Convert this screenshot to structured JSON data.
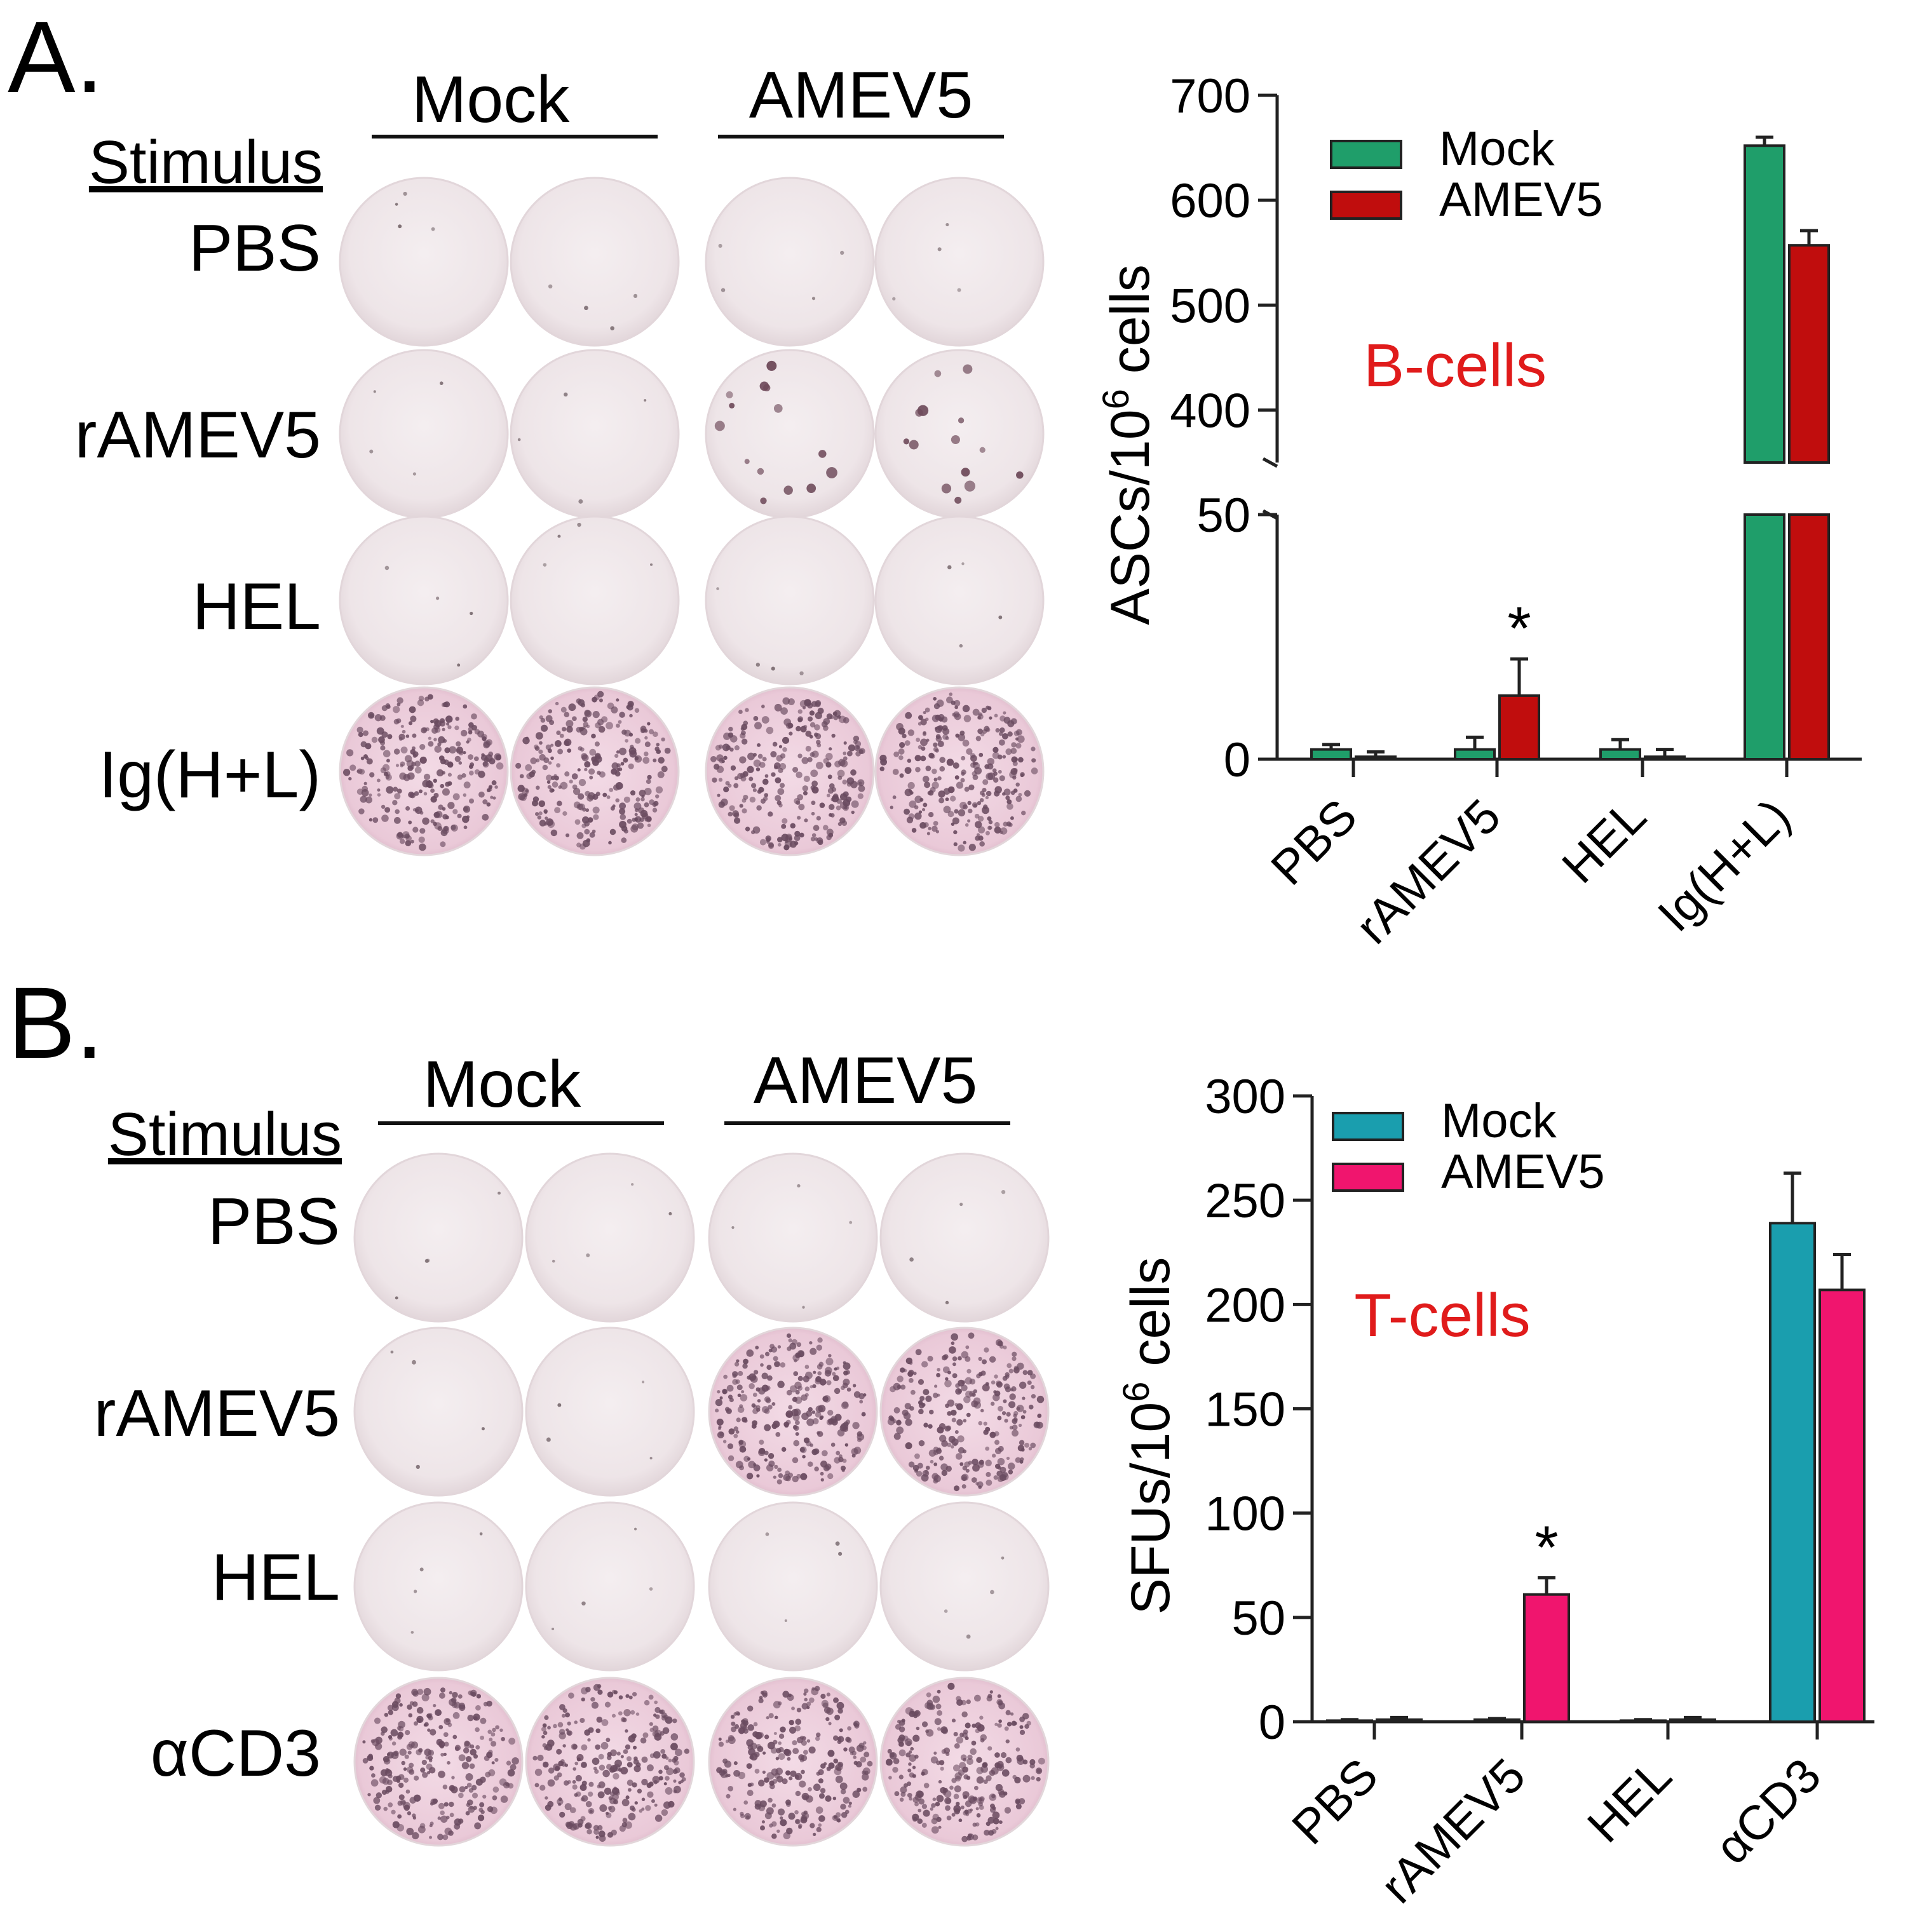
{
  "panels": [
    {
      "letter": "A.",
      "groups": [
        "Mock",
        "AMEV5"
      ],
      "stimulus_header": "Stimulus",
      "stimuli": [
        "PBS",
        "rAMEV5",
        "HEL",
        "Ig(H+L)"
      ]
    },
    {
      "letter": "B.",
      "groups": [
        "Mock",
        "AMEV5"
      ],
      "stimulus_header": "Stimulus",
      "stimuli": [
        "PBS",
        "rAMEV5",
        "HEL",
        "αCD3"
      ]
    }
  ],
  "chart_data": [
    {
      "type": "bar",
      "annotation": "B-cells",
      "annotation_color": "#e01b1b",
      "ylabel": "ASCs/10^6 cells",
      "axis_break": true,
      "lower_ylim": [
        0,
        50
      ],
      "lower_yticks": [
        0,
        50
      ],
      "upper_ylim": [
        350,
        700
      ],
      "upper_yticks": [
        400,
        500,
        600,
        700
      ],
      "categories": [
        "PBS",
        "rAMEV5",
        "HEL",
        "Ig(H+L)"
      ],
      "legend_position": "top-left",
      "series": [
        {
          "name": "Mock",
          "color": "#1f9e6a",
          "values": [
            2,
            2,
            2,
            652
          ],
          "errors": [
            1,
            2.5,
            2,
            8
          ]
        },
        {
          "name": "AMEV5",
          "color": "#c00d0d",
          "values": [
            0.5,
            13,
            0.5,
            557
          ],
          "errors": [
            1,
            7.5,
            1.5,
            14
          ]
        }
      ],
      "significance": [
        {
          "category": "rAMEV5",
          "series": "AMEV5",
          "mark": "*"
        }
      ]
    },
    {
      "type": "bar",
      "annotation": "T-cells",
      "annotation_color": "#e01b1b",
      "ylabel": "SFUs/10^6 cells",
      "ylim": [
        0,
        300
      ],
      "yticks": [
        0,
        50,
        100,
        150,
        200,
        250,
        300
      ],
      "categories": [
        "PBS",
        "rAMEV5",
        "HEL",
        "αCD3"
      ],
      "legend_position": "top-left",
      "series": [
        {
          "name": "Mock",
          "color": "#1a9eae",
          "values": [
            0.5,
            1,
            0.5,
            239
          ],
          "errors": [
            0.5,
            0.5,
            0.5,
            24
          ]
        },
        {
          "name": "AMEV5",
          "color": "#f0156e",
          "values": [
            1,
            61,
            1,
            207
          ],
          "errors": [
            1,
            8,
            1,
            17
          ]
        }
      ],
      "significance": [
        {
          "category": "rAMEV5",
          "series": "AMEV5",
          "mark": "*"
        }
      ]
    }
  ]
}
